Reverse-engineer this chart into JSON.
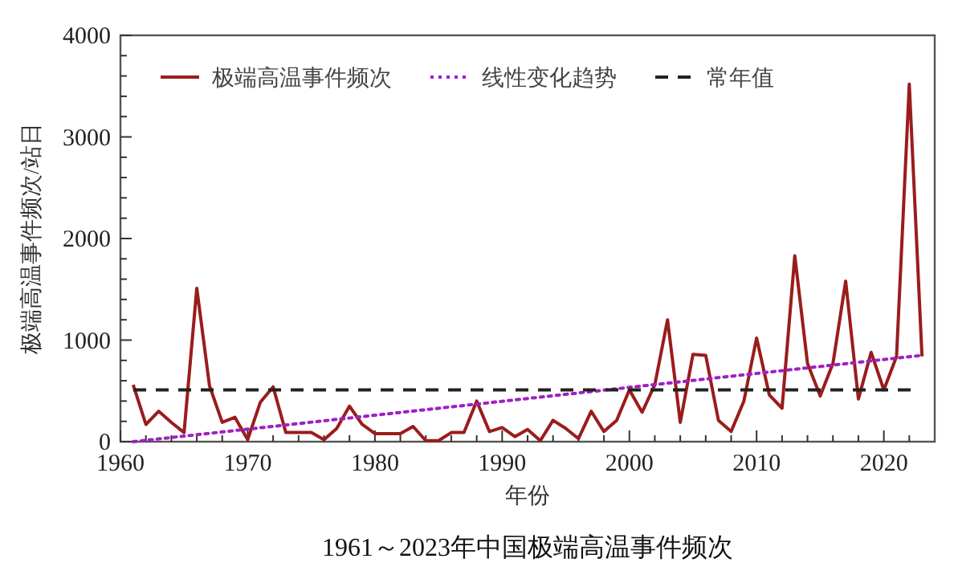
{
  "chart_data": {
    "type": "line",
    "title": "1961～2023年中国极端高温事件频次",
    "xlabel": "年份",
    "ylabel": "极端高温事件频次/站日",
    "x": [
      1961,
      1962,
      1963,
      1964,
      1965,
      1966,
      1967,
      1968,
      1969,
      1970,
      1971,
      1972,
      1973,
      1974,
      1975,
      1976,
      1977,
      1978,
      1979,
      1980,
      1981,
      1982,
      1983,
      1984,
      1985,
      1986,
      1987,
      1988,
      1989,
      1990,
      1991,
      1992,
      1993,
      1994,
      1995,
      1996,
      1997,
      1998,
      1999,
      2000,
      2001,
      2002,
      2003,
      2004,
      2005,
      2006,
      2007,
      2008,
      2009,
      2010,
      2011,
      2012,
      2013,
      2014,
      2015,
      2016,
      2017,
      2018,
      2019,
      2020,
      2021,
      2022,
      2023
    ],
    "series": [
      {
        "name": "极端高温事件频次",
        "color": "#9b1c1c",
        "line_style": "solid",
        "values": [
          560,
          170,
          300,
          190,
          90,
          1510,
          550,
          190,
          240,
          20,
          390,
          540,
          90,
          90,
          90,
          20,
          130,
          350,
          170,
          80,
          80,
          80,
          150,
          10,
          10,
          90,
          90,
          400,
          100,
          140,
          50,
          120,
          10,
          210,
          130,
          30,
          300,
          100,
          210,
          510,
          290,
          560,
          1200,
          190,
          860,
          850,
          210,
          100,
          400,
          1020,
          460,
          330,
          1830,
          770,
          450,
          770,
          1580,
          420,
          880,
          510,
          840,
          3520,
          840
        ]
      },
      {
        "name": "线性变化趋势",
        "color": "#a020c0",
        "line_style": "dotted",
        "x": [
          1961,
          2023
        ],
        "values": [
          0,
          850
        ]
      }
    ],
    "ref_lines": [
      {
        "axis": "y",
        "value": 510,
        "label": "常年值",
        "color": "#222222",
        "line_style": "dashed"
      }
    ],
    "xlim": [
      1960,
      2024
    ],
    "ylim": [
      0,
      4000
    ],
    "xticks": [
      1960,
      {
        "value": 1962,
        "label": null
      },
      {
        "value": 1964,
        "label": null
      },
      {
        "value": 1966,
        "label": null
      },
      {
        "value": 1968,
        "label": null
      },
      1970,
      {
        "value": 1972,
        "label": null
      },
      {
        "value": 1974,
        "label": null
      },
      {
        "value": 1976,
        "label": null
      },
      {
        "value": 1978,
        "label": null
      },
      1980,
      {
        "value": 1982,
        "label": null
      },
      {
        "value": 1984,
        "label": null
      },
      {
        "value": 1986,
        "label": null
      },
      {
        "value": 1988,
        "label": null
      },
      1990,
      {
        "value": 1992,
        "label": null
      },
      {
        "value": 1994,
        "label": null
      },
      {
        "value": 1996,
        "label": null
      },
      {
        "value": 1998,
        "label": null
      },
      2000,
      {
        "value": 2002,
        "label": null
      },
      {
        "value": 2004,
        "label": null
      },
      {
        "value": 2006,
        "label": null
      },
      {
        "value": 2008,
        "label": null
      },
      2010,
      {
        "value": 2012,
        "label": null
      },
      {
        "value": 2014,
        "label": null
      },
      {
        "value": 2016,
        "label": null
      },
      {
        "value": 2018,
        "label": null
      },
      2020,
      {
        "value": 2022,
        "label": null
      }
    ],
    "yticks": [
      0,
      {
        "value": 200,
        "label": null
      },
      {
        "value": 400,
        "label": null
      },
      {
        "value": 600,
        "label": null
      },
      {
        "value": 800,
        "label": null
      },
      1000,
      {
        "value": 1200,
        "label": null
      },
      {
        "value": 1400,
        "label": null
      },
      {
        "value": 1600,
        "label": null
      },
      {
        "value": 1800,
        "label": null
      },
      2000,
      {
        "value": 2200,
        "label": null
      },
      {
        "value": 2400,
        "label": null
      },
      {
        "value": 2600,
        "label": null
      },
      {
        "value": 2800,
        "label": null
      },
      3000,
      {
        "value": 3200,
        "label": null
      },
      {
        "value": 3400,
        "label": null
      },
      {
        "value": 3600,
        "label": null
      },
      {
        "value": 3800,
        "label": null
      },
      4000
    ],
    "grid": false,
    "legend": "top",
    "marker": "none"
  }
}
